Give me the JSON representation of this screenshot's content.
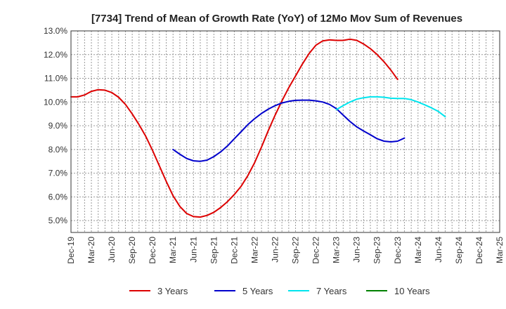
{
  "chart_data": {
    "type": "line",
    "title": "[7734]  Trend of Mean of Growth Rate (YoY) of 12Mo Mov Sum of Revenues",
    "xlabel": "",
    "ylabel": "",
    "ylim": [
      4.5,
      13.0
    ],
    "yticks": [
      5.0,
      6.0,
      7.0,
      8.0,
      9.0,
      10.0,
      11.0,
      12.0,
      13.0
    ],
    "ytick_labels": [
      "5.0%",
      "6.0%",
      "7.0%",
      "8.0%",
      "9.0%",
      "10.0%",
      "11.0%",
      "12.0%",
      "13.0%"
    ],
    "x_tick_labels": [
      "Dec-19",
      "Mar-20",
      "Jun-20",
      "Sep-20",
      "Dec-20",
      "Mar-21",
      "Jun-21",
      "Sep-21",
      "Dec-21",
      "Mar-22",
      "Jun-22",
      "Sep-22",
      "Dec-22",
      "Mar-23",
      "Jun-23",
      "Sep-23",
      "Dec-23",
      "Mar-24",
      "Jun-24",
      "Sep-24",
      "Dec-24",
      "Mar-25"
    ],
    "grid": true,
    "legend_position": "bottom",
    "series": [
      {
        "name": "3 Years",
        "color": "#dd0000",
        "start_index": 0,
        "values": [
          10.22,
          10.22,
          10.3,
          10.45,
          10.52,
          10.5,
          10.4,
          10.2,
          9.9,
          9.5,
          9.05,
          8.55,
          7.95,
          7.3,
          6.65,
          6.05,
          5.6,
          5.3,
          5.17,
          5.15,
          5.22,
          5.35,
          5.55,
          5.8,
          6.1,
          6.45,
          6.9,
          7.45,
          8.1,
          8.8,
          9.45,
          10.05,
          10.6,
          11.1,
          11.6,
          12.05,
          12.4,
          12.58,
          12.62,
          12.6,
          12.6,
          12.65,
          12.6,
          12.45,
          12.25,
          12.0,
          11.7,
          11.35,
          10.95
        ]
      },
      {
        "name": "5 Years",
        "color": "#0000cc",
        "start_index": 15,
        "values": [
          8.0,
          7.8,
          7.62,
          7.52,
          7.5,
          7.55,
          7.7,
          7.9,
          8.15,
          8.45,
          8.75,
          9.05,
          9.3,
          9.52,
          9.7,
          9.85,
          9.96,
          10.03,
          10.07,
          10.08,
          10.08,
          10.05,
          10.0,
          9.9,
          9.72,
          9.45,
          9.18,
          8.95,
          8.78,
          8.62,
          8.45,
          8.35,
          8.32,
          8.35,
          8.48
        ]
      },
      {
        "name": "7 Years",
        "color": "#00e5ee",
        "start_index": 39,
        "values": [
          9.68,
          9.85,
          10.0,
          10.12,
          10.18,
          10.22,
          10.22,
          10.2,
          10.16,
          10.15,
          10.15,
          10.1,
          10.0,
          9.88,
          9.75,
          9.6,
          9.38
        ]
      },
      {
        "name": "10 Years",
        "color": "#008000",
        "start_index": 0,
        "values": []
      }
    ]
  }
}
